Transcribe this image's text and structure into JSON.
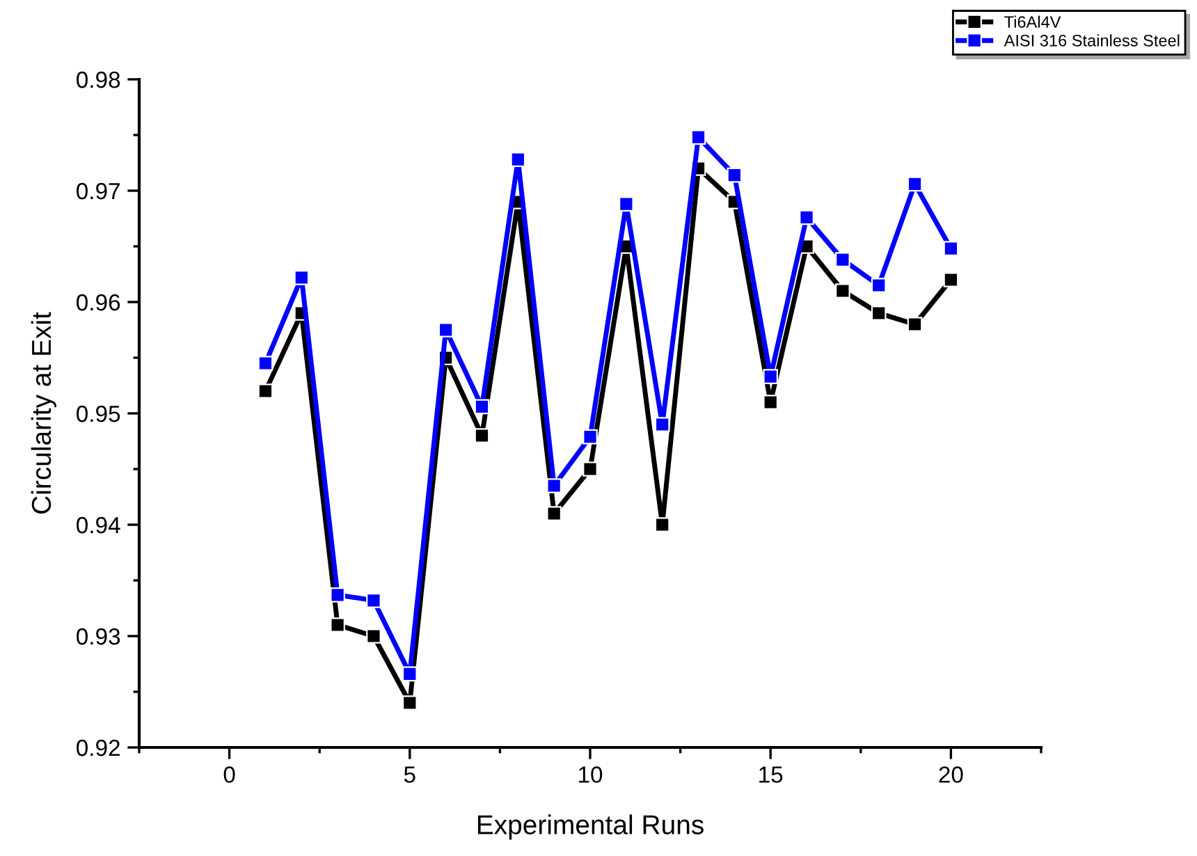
{
  "chart_data": {
    "type": "line",
    "xlabel": "Experimental Runs",
    "ylabel": "Circularity at Exit",
    "x": [
      1,
      2,
      3,
      4,
      5,
      6,
      7,
      8,
      9,
      10,
      11,
      12,
      13,
      14,
      15,
      16,
      17,
      18,
      19,
      20
    ],
    "series": [
      {
        "name": "Ti6Al4V",
        "color": "#000000",
        "values": [
          0.952,
          0.959,
          0.931,
          0.93,
          0.924,
          0.955,
          0.948,
          0.969,
          0.941,
          0.945,
          0.965,
          0.94,
          0.972,
          0.969,
          0.951,
          0.965,
          0.961,
          0.959,
          0.958,
          0.962
        ]
      },
      {
        "name": "AISI 316 Stainless Steel",
        "color": "#0000ff",
        "values": [
          0.9545,
          0.9622,
          0.9337,
          0.9332,
          0.9266,
          0.9575,
          0.9506,
          0.9728,
          0.9435,
          0.9479,
          0.9688,
          0.949,
          0.9748,
          0.9714,
          0.9533,
          0.9676,
          0.9638,
          0.9615,
          0.9706,
          0.9648
        ]
      }
    ],
    "xlim": [
      -2.5,
      22.5
    ],
    "xticks": [
      0,
      5,
      10,
      15,
      20
    ],
    "ylim": [
      0.92,
      0.98
    ],
    "yticks": [
      0.92,
      0.93,
      0.94,
      0.95,
      0.96,
      0.97,
      0.98
    ],
    "marker": "square",
    "line_style": "solid",
    "grid": false,
    "legend": "top right"
  }
}
